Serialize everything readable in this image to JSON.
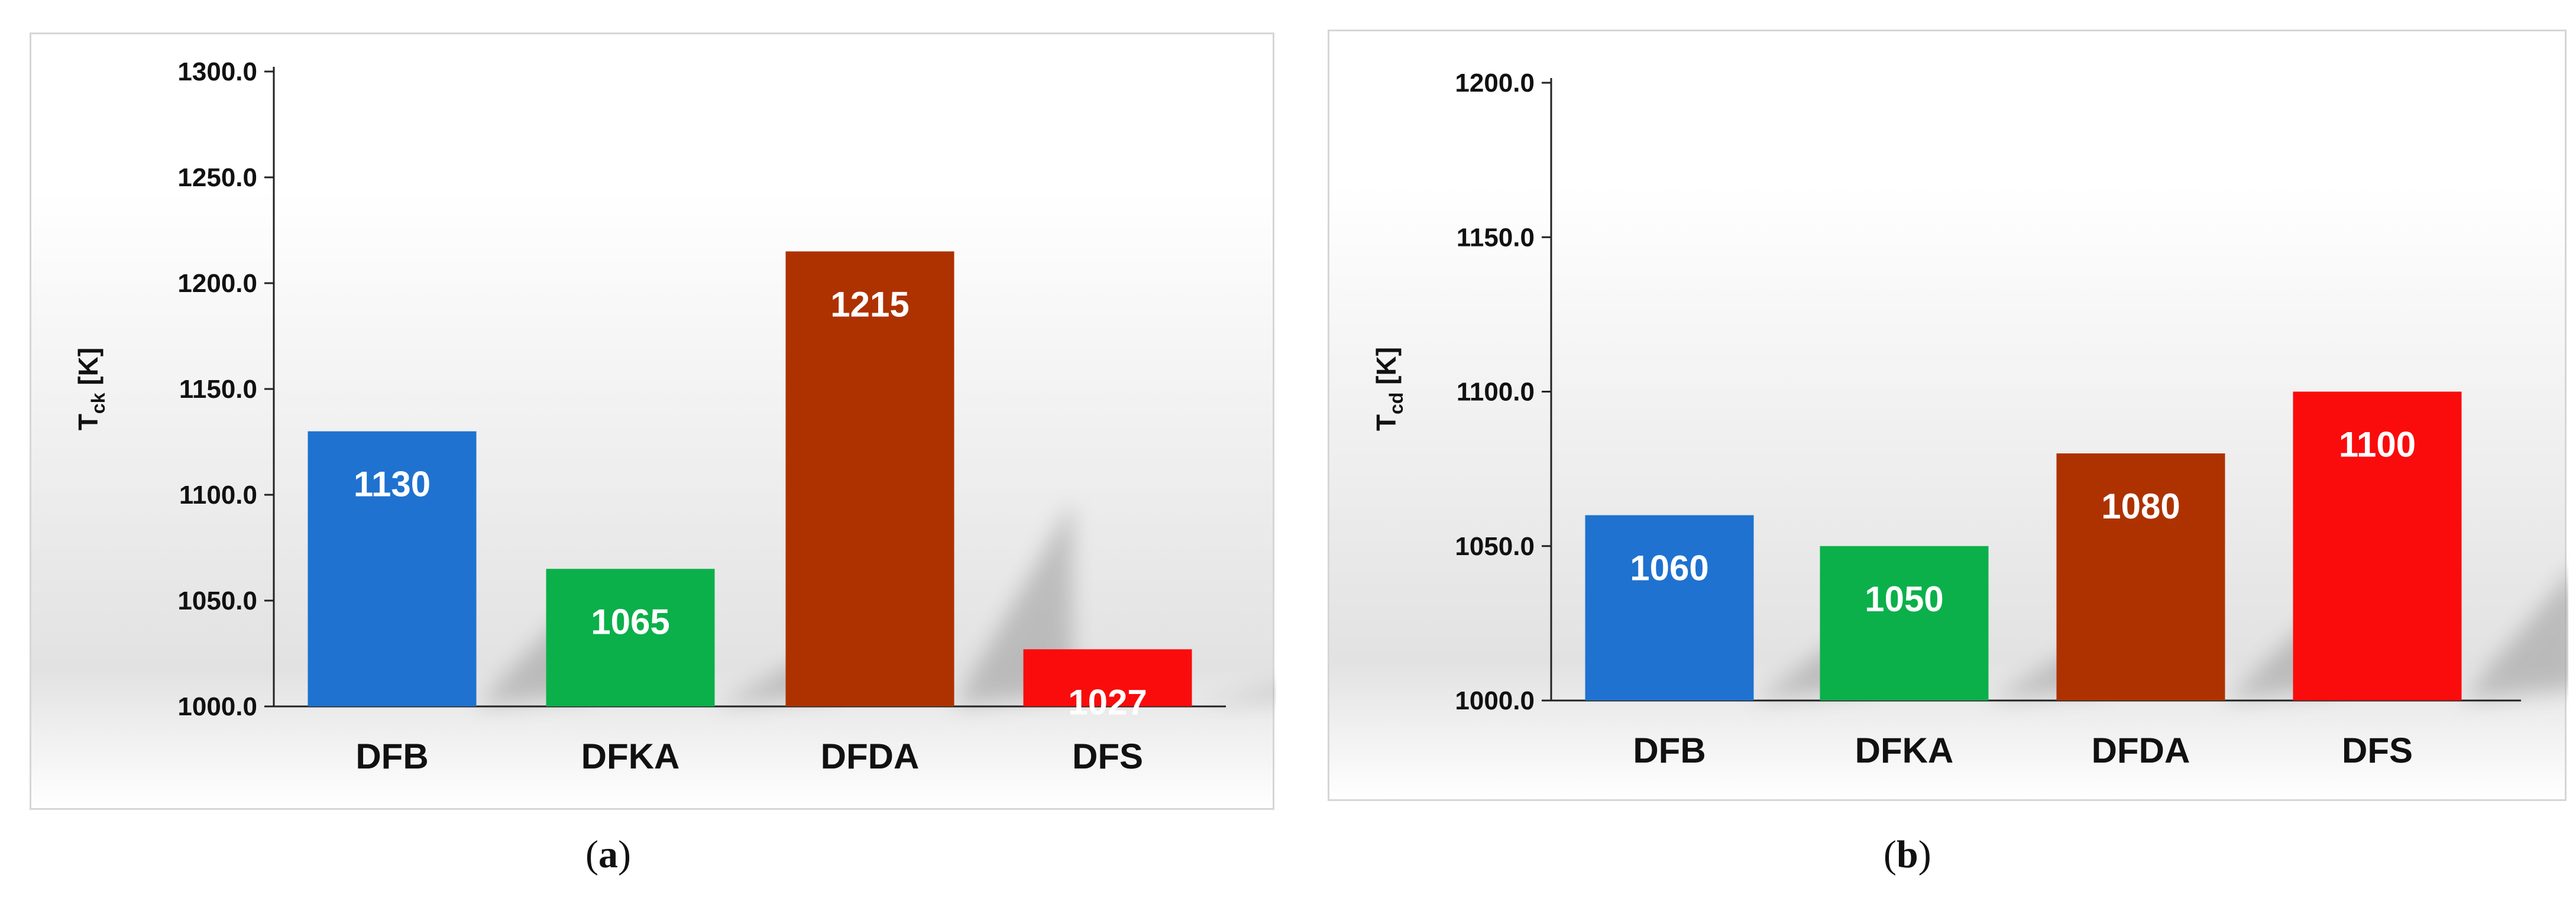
{
  "chart_data": [
    {
      "type": "bar",
      "panel": "a",
      "ylabel_main": "T",
      "ylabel_sub": "ck",
      "ylabel_unit": " [K]",
      "categories": [
        "DFB",
        "DFKA",
        "DFDA",
        "DFS"
      ],
      "values": [
        1130,
        1065,
        1215,
        1027
      ],
      "value_labels": [
        "1130",
        "1065",
        "1215",
        "1027"
      ],
      "colors": [
        "#1f72cf",
        "#0bb04a",
        "#ae3200",
        "#fa0c0c"
      ],
      "ylim": [
        1000,
        1300
      ],
      "yticks": [
        1000,
        1050,
        1100,
        1150,
        1200,
        1250,
        1300
      ],
      "ytick_labels": [
        "1000.0",
        "1050.0",
        "1100.0",
        "1150.0",
        "1200.0",
        "1250.0",
        "1300.0"
      ],
      "grid": false,
      "legend": "none"
    },
    {
      "type": "bar",
      "panel": "b",
      "ylabel_main": "T",
      "ylabel_sub": "cd",
      "ylabel_unit": " [K]",
      "categories": [
        "DFB",
        "DFKA",
        "DFDA",
        "DFS"
      ],
      "values": [
        1060,
        1050,
        1080,
        1100
      ],
      "value_labels": [
        "1060",
        "1050",
        "1080",
        "1100"
      ],
      "colors": [
        "#1f72cf",
        "#0bb04a",
        "#ae3200",
        "#fa0c0c"
      ],
      "ylim": [
        1000,
        1200
      ],
      "yticks": [
        1000,
        1050,
        1100,
        1150,
        1200
      ],
      "ytick_labels": [
        "1000.0",
        "1050.0",
        "1100.0",
        "1150.0",
        "1200.0"
      ],
      "grid": false,
      "legend": "none"
    }
  ],
  "captions": {
    "a_open": "(",
    "a_letter": "a",
    "a_close": ")",
    "b_open": "(",
    "b_letter": "b",
    "b_close": ")"
  }
}
